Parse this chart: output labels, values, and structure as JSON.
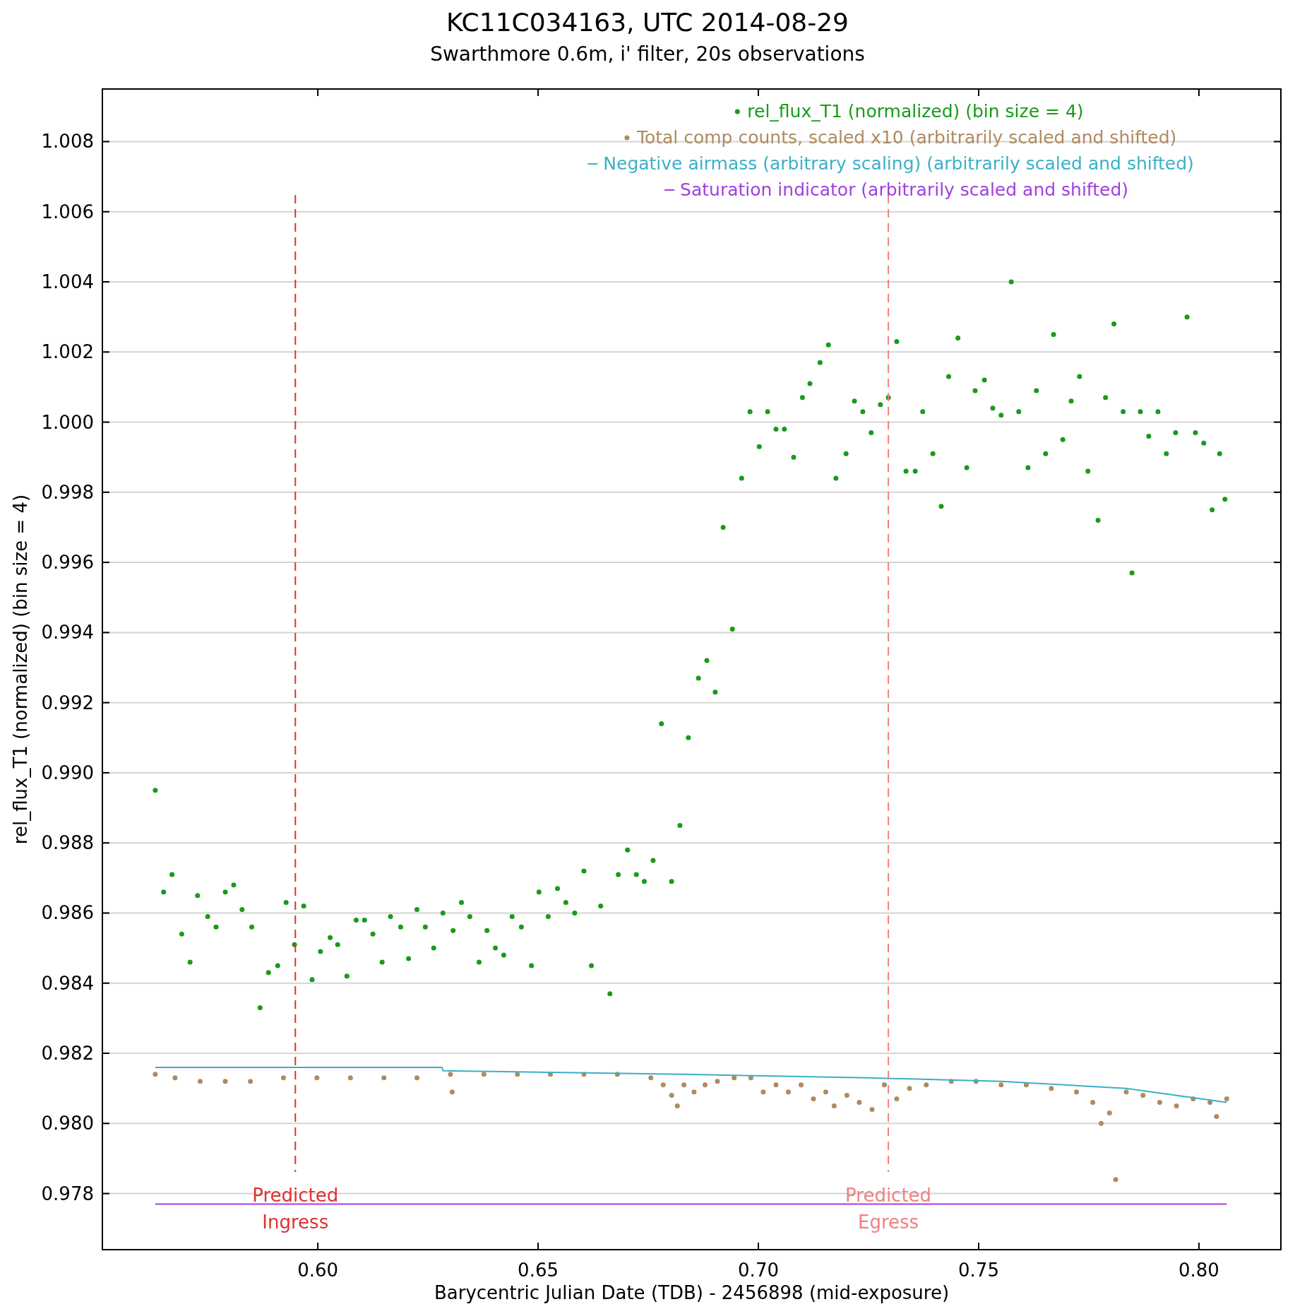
{
  "chart_data": {
    "type": "scatter",
    "title": "KC11C034163, UTC 2014-08-29",
    "subtitle": "Swarthmore 0.6m, i'  filter, 20s observations",
    "xlabel": "Barycentric Julian Date (TDB) - 2456898 (mid-exposure)",
    "ylabel": "rel_flux_T1 (normalized) (bin size = 4)",
    "xlim": [
      0.5511,
      0.8186
    ],
    "xticks": [
      {
        "value": 0.6,
        "label": "0.60"
      },
      {
        "value": 0.65,
        "label": "0.65"
      },
      {
        "value": 0.7,
        "label": "0.70"
      },
      {
        "value": 0.75,
        "label": "0.75"
      },
      {
        "value": 0.8,
        "label": "0.80"
      }
    ],
    "ylim": [
      0.9764,
      1.0095
    ],
    "yticks": [
      {
        "value": 0.978,
        "label": "0.978"
      },
      {
        "value": 0.98,
        "label": "0.980"
      },
      {
        "value": 0.982,
        "label": "0.982"
      },
      {
        "value": 0.984,
        "label": "0.984"
      },
      {
        "value": 0.986,
        "label": "0.986"
      },
      {
        "value": 0.988,
        "label": "0.988"
      },
      {
        "value": 0.99,
        "label": "0.990"
      },
      {
        "value": 0.992,
        "label": "0.992"
      },
      {
        "value": 0.994,
        "label": "0.994"
      },
      {
        "value": 0.996,
        "label": "0.996"
      },
      {
        "value": 0.998,
        "label": "0.998"
      },
      {
        "value": 1.0,
        "label": "1.000"
      },
      {
        "value": 1.002,
        "label": "1.002"
      },
      {
        "value": 1.004,
        "label": "1.004"
      },
      {
        "value": 1.006,
        "label": "1.006"
      },
      {
        "value": 1.008,
        "label": "1.008"
      }
    ],
    "grid": "y",
    "legend": "top right",
    "ref_lines": [
      {
        "axis": "x",
        "value": 0.5949,
        "label": "Predicted\nIngress",
        "color": "#e03030",
        "line_style": "dashed"
      },
      {
        "axis": "x",
        "value": 0.7295,
        "label": "Predicted\nEgress",
        "color": "#f08080",
        "line_style": "dashed"
      }
    ],
    "series": [
      {
        "name": "rel_flux_T1 (normalized) (bin size = 4)",
        "marker": "circle",
        "color": "#1a9a1a",
        "x": [
          0.5631,
          0.565,
          0.5669,
          0.5691,
          0.571,
          0.5727,
          0.575,
          0.5769,
          0.579,
          0.5809,
          0.5828,
          0.585,
          0.5869,
          0.5888,
          0.5909,
          0.5928,
          0.5947,
          0.5968,
          0.5987,
          0.6006,
          0.6028,
          0.6045,
          0.6066,
          0.6087,
          0.6106,
          0.6125,
          0.6146,
          0.6165,
          0.6188,
          0.6206,
          0.6225,
          0.6244,
          0.6263,
          0.6284,
          0.6307,
          0.6326,
          0.6345,
          0.6366,
          0.6384,
          0.6403,
          0.6422,
          0.6441,
          0.6462,
          0.6485,
          0.6502,
          0.6523,
          0.6544,
          0.6563,
          0.6583,
          0.6604,
          0.6621,
          0.6642,
          0.6663,
          0.6682,
          0.6703,
          0.6723,
          0.6741,
          0.6761,
          0.678,
          0.6803,
          0.6822,
          0.6841,
          0.6864,
          0.6883,
          0.6902,
          0.692,
          0.6941,
          0.6962,
          0.6981,
          0.7002,
          0.7021,
          0.704,
          0.7059,
          0.708,
          0.71,
          0.7117,
          0.714,
          0.7159,
          0.7176,
          0.7199,
          0.7218,
          0.7237,
          0.7256,
          0.7277,
          0.7295,
          0.7314,
          0.7335,
          0.7356,
          0.7373,
          0.7396,
          0.7415,
          0.7432,
          0.7453,
          0.7473,
          0.7492,
          0.7513,
          0.7532,
          0.7551,
          0.7574,
          0.7591,
          0.7612,
          0.7631,
          0.7652,
          0.767,
          0.7691,
          0.771,
          0.7729,
          0.7748,
          0.7771,
          0.7788,
          0.7807,
          0.7828,
          0.7848,
          0.7867,
          0.7886,
          0.7907,
          0.7926,
          0.7947,
          0.7973,
          0.7992,
          0.8011,
          0.803,
          0.8047,
          0.8059
        ],
        "values": [
          0.9895,
          0.9866,
          0.9871,
          0.9854,
          0.9846,
          0.9865,
          0.9859,
          0.9856,
          0.9866,
          0.9868,
          0.9861,
          0.9856,
          0.9833,
          0.9843,
          0.9845,
          0.9863,
          0.9851,
          0.9862,
          0.9841,
          0.9849,
          0.9853,
          0.9851,
          0.9842,
          0.9858,
          0.9858,
          0.9854,
          0.9846,
          0.9859,
          0.9856,
          0.9847,
          0.9861,
          0.9856,
          0.985,
          0.986,
          0.9855,
          0.9863,
          0.9859,
          0.9846,
          0.9855,
          0.985,
          0.9848,
          0.9859,
          0.9856,
          0.9845,
          0.9866,
          0.9859,
          0.9867,
          0.9863,
          0.986,
          0.9872,
          0.9845,
          0.9862,
          0.9837,
          0.9871,
          0.9878,
          0.9871,
          0.9869,
          0.9875,
          0.9914,
          0.9869,
          0.9885,
          0.991,
          0.9927,
          0.9932,
          0.9923,
          0.997,
          0.9941,
          0.9984,
          1.0003,
          0.9993,
          1.0003,
          0.9998,
          0.9998,
          0.999,
          1.0007,
          1.0011,
          1.0017,
          1.0022,
          0.9984,
          0.9991,
          1.0006,
          1.0003,
          0.9997,
          1.0005,
          1.0007,
          1.0023,
          0.9986,
          0.9986,
          1.0003,
          0.9991,
          0.9976,
          1.0013,
          1.0024,
          0.9987,
          1.0009,
          1.0012,
          1.0004,
          1.0002,
          1.004,
          1.0003,
          0.9987,
          1.0009,
          0.9991,
          1.0025,
          0.9995,
          1.0006,
          1.0013,
          0.9986,
          0.9972,
          1.0007,
          1.0028,
          1.0003,
          0.9957,
          1.0003,
          0.9996,
          1.0003,
          0.9991,
          0.9997,
          1.003,
          0.9997,
          0.9994,
          0.9975,
          0.9991,
          0.9978
        ]
      },
      {
        "name": "Total comp counts, scaled x10 (arbitrarily scaled and shifted)",
        "marker": "circle",
        "color": "#b08a60",
        "x": [
          0.5631,
          0.5676,
          0.5733,
          0.579,
          0.5847,
          0.5922,
          0.5998,
          0.6074,
          0.615,
          0.6225,
          0.6301,
          0.6305,
          0.6377,
          0.6453,
          0.6528,
          0.6604,
          0.668,
          0.6756,
          0.6784,
          0.6803,
          0.6816,
          0.6831,
          0.6854,
          0.6879,
          0.6907,
          0.6945,
          0.6983,
          0.7011,
          0.704,
          0.7068,
          0.7097,
          0.7125,
          0.7153,
          0.7172,
          0.7201,
          0.7229,
          0.7258,
          0.7286,
          0.7314,
          0.7343,
          0.7381,
          0.7438,
          0.7494,
          0.7551,
          0.7608,
          0.7665,
          0.7722,
          0.7759,
          0.7778,
          0.7797,
          0.7811,
          0.7835,
          0.7873,
          0.7911,
          0.7949,
          0.7987,
          0.8025,
          0.804,
          0.8063
        ],
        "values": [
          0.9814,
          0.9813,
          0.9812,
          0.9812,
          0.9812,
          0.9813,
          0.9813,
          0.9813,
          0.9813,
          0.9813,
          0.9814,
          0.9809,
          0.9814,
          0.9814,
          0.9814,
          0.9814,
          0.9814,
          0.9813,
          0.9811,
          0.9808,
          0.9805,
          0.9811,
          0.9809,
          0.9811,
          0.9812,
          0.9813,
          0.9813,
          0.9809,
          0.9811,
          0.9809,
          0.9811,
          0.9807,
          0.9809,
          0.9805,
          0.9808,
          0.9806,
          0.9804,
          0.9811,
          0.9807,
          0.981,
          0.9811,
          0.9812,
          0.9812,
          0.9811,
          0.9811,
          0.981,
          0.9809,
          0.9806,
          0.98,
          0.9803,
          0.9784,
          0.9809,
          0.9808,
          0.9806,
          0.9805,
          0.9807,
          0.9806,
          0.9802,
          0.9807
        ]
      },
      {
        "name": "Negative airmass (arbitrary scaling) (arbitrarily scaled and shifted)",
        "type": "line",
        "color": "#3ab0c8",
        "x": [
          0.5631,
          0.6282,
          0.6284,
          0.6831,
          0.7248,
          0.7551,
          0.7835,
          0.8063
        ],
        "values": [
          0.9816,
          0.9816,
          0.9815,
          0.9814,
          0.9813,
          0.9812,
          0.981,
          0.9806
        ]
      },
      {
        "name": "Saturation indicator (arbitrarily scaled and shifted)",
        "type": "line",
        "color": "#a040e0",
        "x": [
          0.5631,
          0.8063
        ],
        "values": [
          0.9777,
          0.9777
        ]
      }
    ]
  }
}
